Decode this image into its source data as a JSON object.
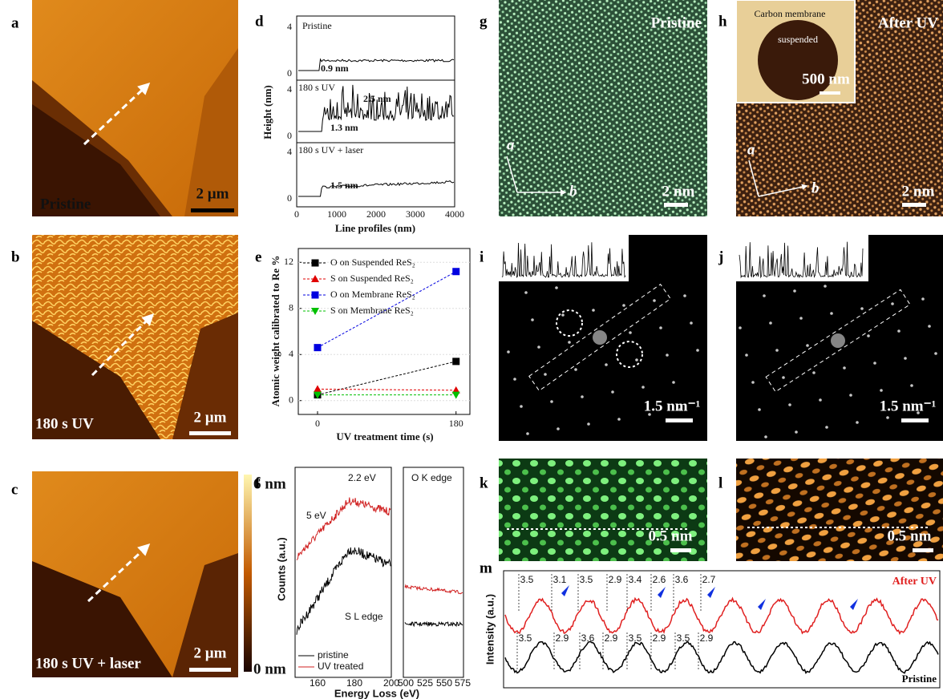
{
  "panels": {
    "a": {
      "label": "a",
      "caption": "Pristine",
      "scale": "2 µm"
    },
    "b": {
      "label": "b",
      "caption": "180 s UV",
      "scale": "2 µm"
    },
    "c": {
      "label": "c",
      "caption": "180 s UV + laser",
      "scale": "2 µm",
      "colorbar_max": "6 nm",
      "colorbar_min": "0 nm"
    },
    "d": {
      "label": "d",
      "y_label": "Height (nm)",
      "x_label": "Line profiles (nm)",
      "x_ticks": [
        "0",
        "1000",
        "2000",
        "3000",
        "4000"
      ],
      "y_ticks": [
        "0",
        "4"
      ],
      "traces": [
        {
          "name": "Pristine",
          "steps": [
            "0.9 nm"
          ]
        },
        {
          "name": "180 s UV",
          "steps": [
            "2.5 nm",
            "1.3 nm"
          ]
        },
        {
          "name": "180 s UV + laser",
          "steps": [
            "1.5 nm"
          ]
        }
      ]
    },
    "f": {
      "label": "f",
      "y_label": "Counts (a.u.)",
      "x_label": "Energy Loss (eV)",
      "left_ticks": [
        "160",
        "180",
        "200"
      ],
      "right_ticks": [
        "500",
        "525",
        "550",
        "575"
      ],
      "shift": "2.2 eV",
      "gap": "5 eV",
      "edge_s": "S L edge",
      "edge_o": "O K edge",
      "legend": [
        "pristine",
        "UV treated"
      ]
    },
    "g": {
      "label": "g",
      "caption": "Pristine",
      "axis_a": "a",
      "axis_b": "b",
      "scale": "2 nm"
    },
    "h": {
      "label": "h",
      "caption": "After UV",
      "inset_title": "Carbon membrane",
      "inset_region": "suspended",
      "inset_scale": "500 nm",
      "axis_a": "a",
      "axis_b": "b",
      "scale": "2 nm"
    },
    "i": {
      "label": "i",
      "scale": "1.5 nm⁻¹"
    },
    "j": {
      "label": "j",
      "scale": "1.5 nm⁻¹"
    },
    "k": {
      "label": "k",
      "scale": "0.5 nm"
    },
    "l": {
      "label": "l",
      "scale": "0.5 nm"
    },
    "m": {
      "label": "m",
      "y_label": "Intensity (a.u.)",
      "after": "After UV",
      "pristine": "Pristine",
      "after_spacings": [
        "3.5",
        "3.1",
        "3.5",
        "2.9",
        "3.4",
        "2.6",
        "3.6",
        "2.7"
      ],
      "pristine_spacings": [
        "3.5",
        "2.9",
        "3.6",
        "2.9",
        "3.5",
        "2.9",
        "3.5",
        "2.9"
      ]
    }
  },
  "chart_data": {
    "type": "line",
    "panel_label": "e",
    "y_label": "Atomic weight calibrated to Re %",
    "x_label": "UV treatment time (s)",
    "x": [
      0,
      180
    ],
    "xlim": [
      -25,
      198
    ],
    "xticks": [
      0,
      180
    ],
    "ylim": [
      -1.2,
      13.2
    ],
    "yticks": [
      0,
      4,
      8,
      12
    ],
    "series": [
      {
        "name": "O on Suspended ReS₂",
        "color": "#000000",
        "marker": "square",
        "values": [
          0.5,
          3.4
        ]
      },
      {
        "name": "S on Suspended ReS₂",
        "color": "#e00000",
        "marker": "triangle",
        "values": [
          1.0,
          0.9
        ]
      },
      {
        "name": "O on Membrane ReS₂",
        "color": "#0000e0",
        "marker": "square",
        "values": [
          4.6,
          11.2
        ]
      },
      {
        "name": "S on Membrane ReS₂",
        "color": "#00c000",
        "marker": "triangle-down",
        "values": [
          0.5,
          0.5
        ]
      }
    ]
  }
}
